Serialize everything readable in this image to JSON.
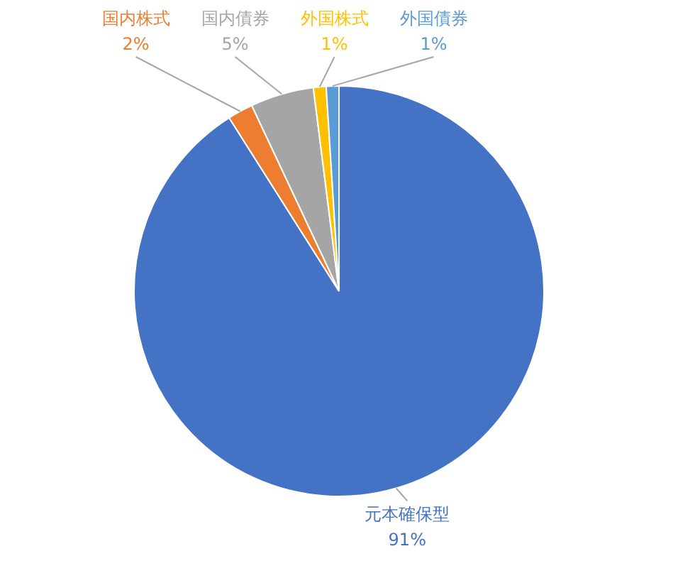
{
  "chart_data": {
    "type": "pie",
    "categories": [
      "元本確保型",
      "国内株式",
      "国内債券",
      "外国株式",
      "外国債券"
    ],
    "values": [
      91,
      2,
      5,
      1,
      1
    ],
    "colors": [
      "#4472c4",
      "#ed7d31",
      "#a5a5a5",
      "#ffc000",
      "#5b9bd5"
    ],
    "value_labels": [
      "91%",
      "2%",
      "5%",
      "1%",
      "1%"
    ]
  }
}
